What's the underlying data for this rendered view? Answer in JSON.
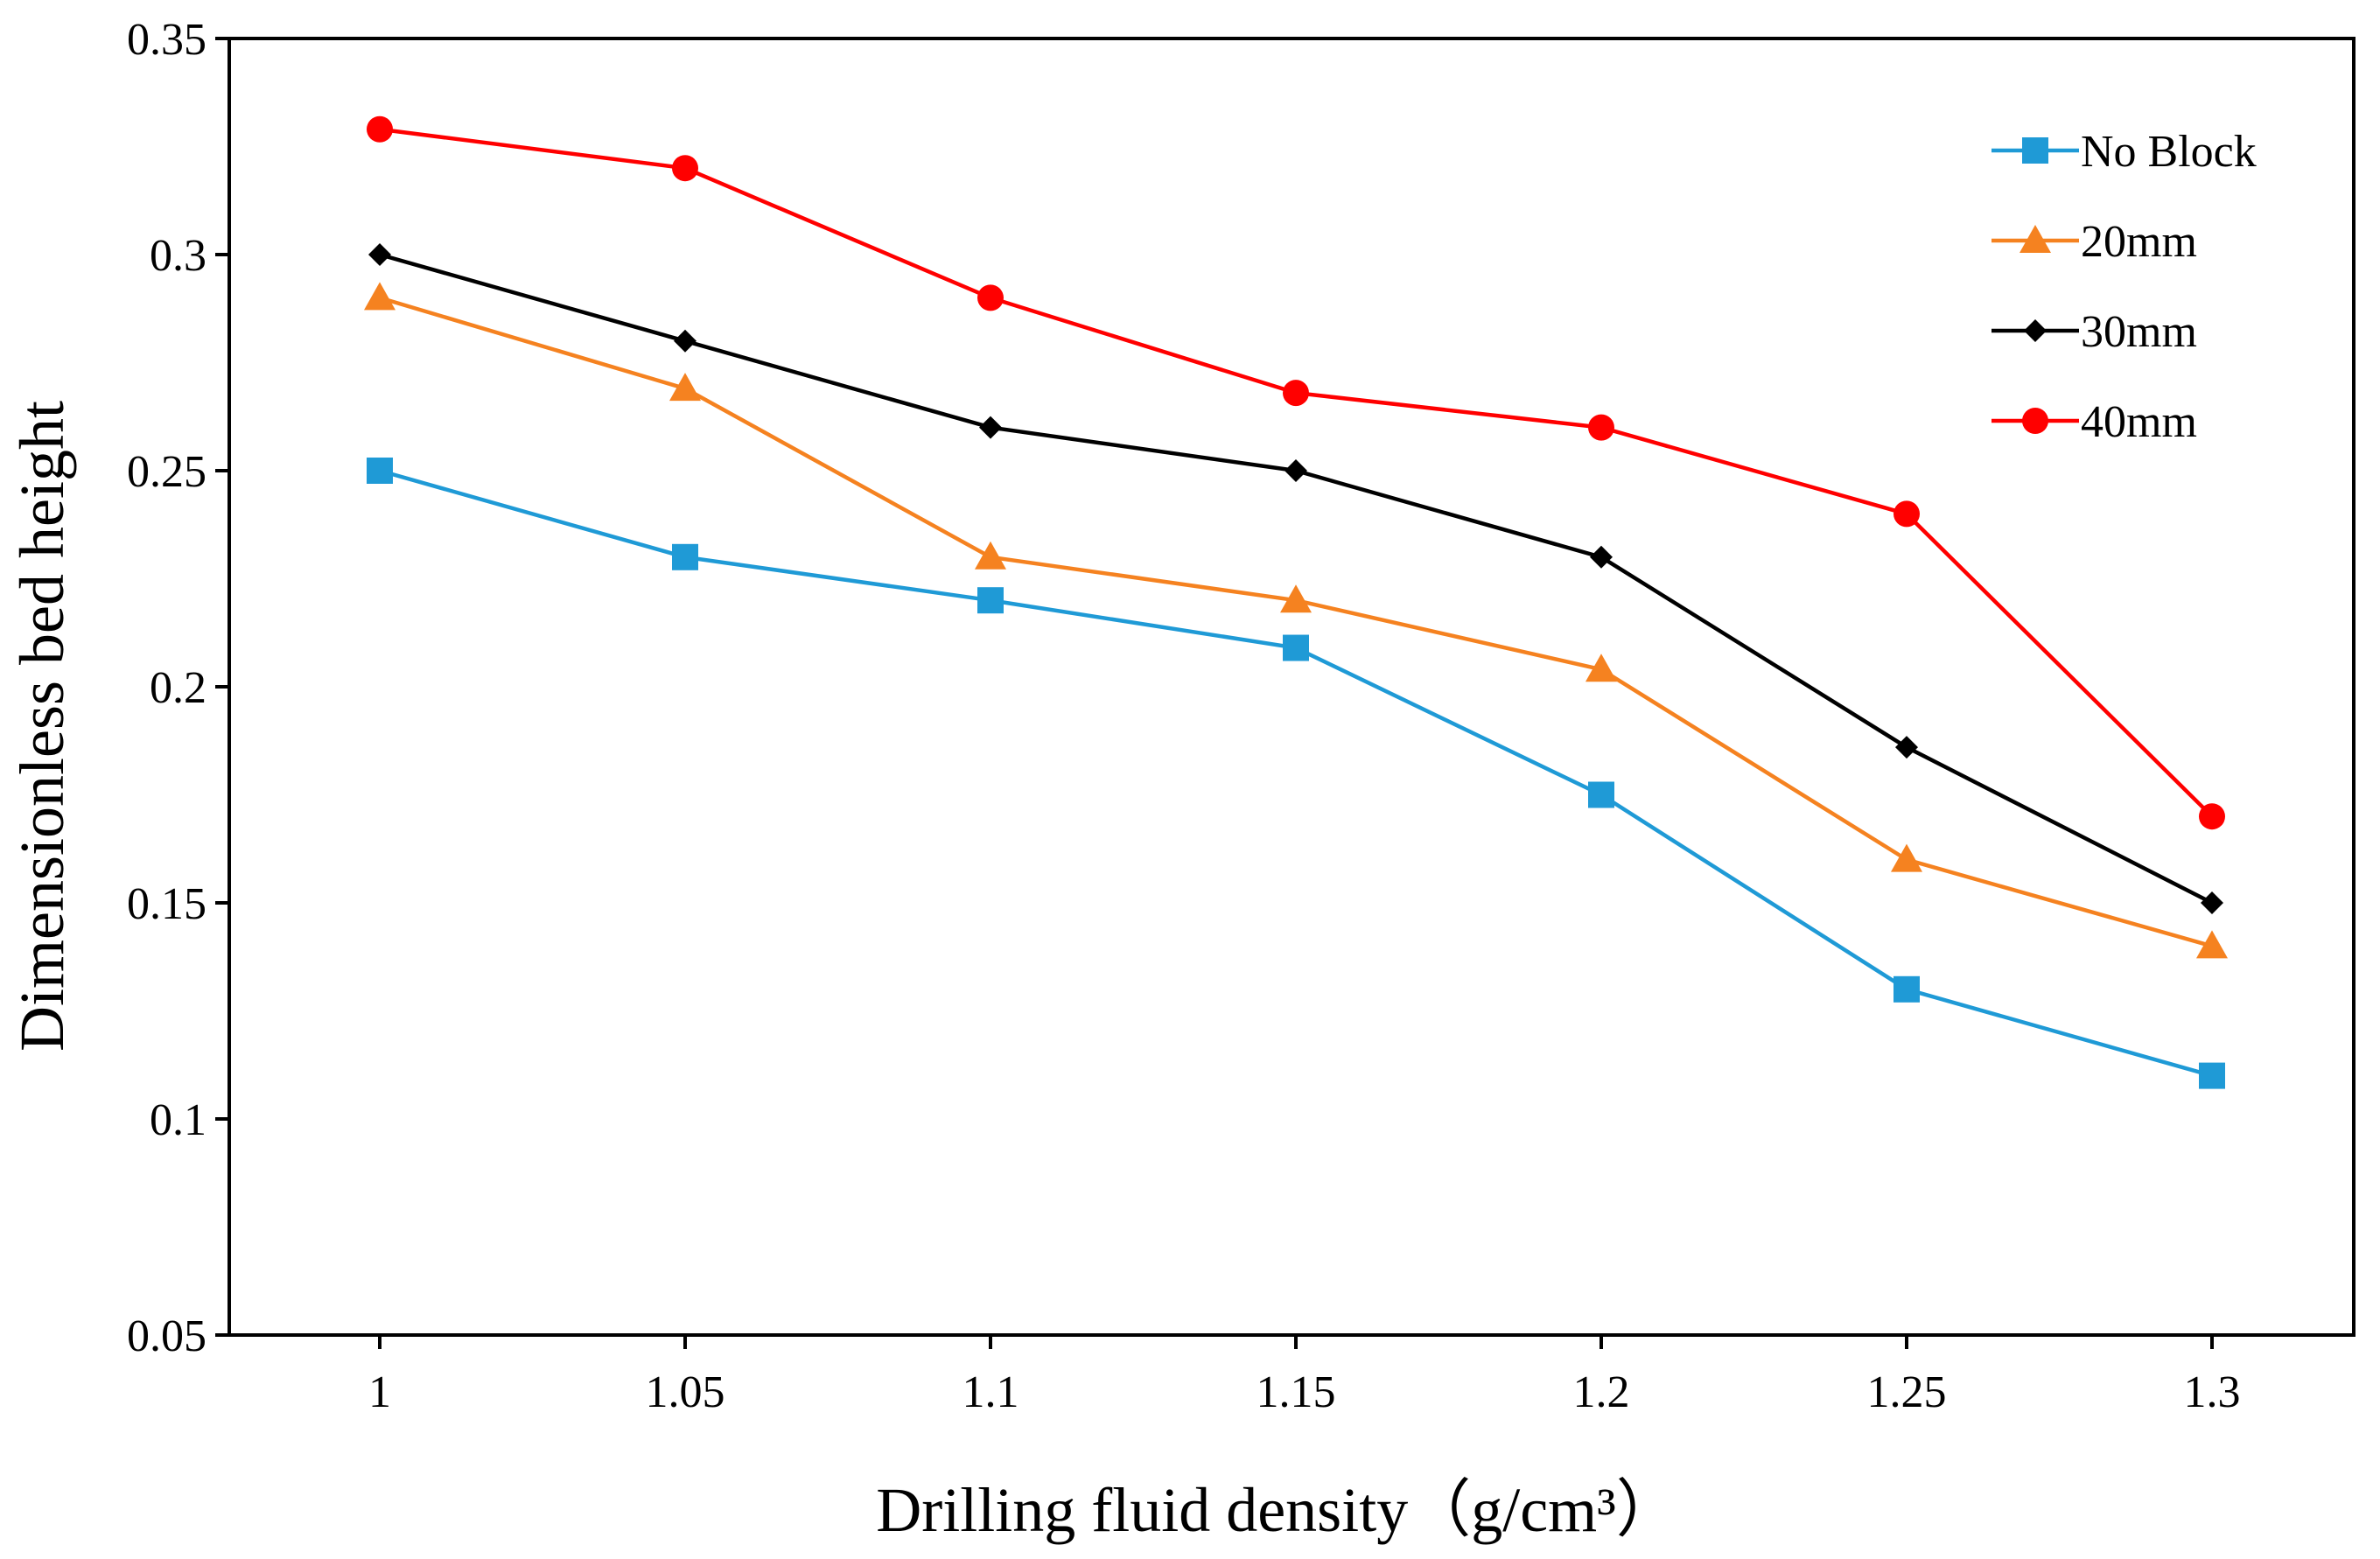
{
  "chart_data": {
    "type": "line",
    "title": "",
    "xlabel": "Drilling fluid density（g/cm³）",
    "ylabel": "Dimensionless bed height",
    "x": [
      1,
      1.05,
      1.1,
      1.15,
      1.2,
      1.25,
      1.3
    ],
    "x_tick_labels": [
      "1",
      "1.05",
      "1.1",
      "1.15",
      "1.2",
      "1.25",
      "1.3"
    ],
    "y_tick_labels": [
      "0.05",
      "0.1",
      "0.15",
      "0.2",
      "0.25",
      "0.3",
      "0.35"
    ],
    "ylim": [
      0.05,
      0.35
    ],
    "grid": false,
    "legend_position": "top-right",
    "series": [
      {
        "name": "No Block",
        "color": "#1f9ad6",
        "marker": "square",
        "values": [
          0.25,
          0.23,
          0.22,
          0.209,
          0.175,
          0.13,
          0.11
        ]
      },
      {
        "name": "20mm",
        "color": "#f58220",
        "marker": "triangle",
        "values": [
          0.29,
          0.269,
          0.23,
          0.22,
          0.204,
          0.16,
          0.14
        ]
      },
      {
        "name": "30mm",
        "color": "#000000",
        "marker": "diamond",
        "values": [
          0.3,
          0.28,
          0.26,
          0.25,
          0.23,
          0.186,
          0.15
        ]
      },
      {
        "name": "40mm",
        "color": "#ff0000",
        "marker": "circle",
        "values": [
          0.329,
          0.32,
          0.29,
          0.268,
          0.26,
          0.24,
          0.17
        ]
      }
    ]
  }
}
